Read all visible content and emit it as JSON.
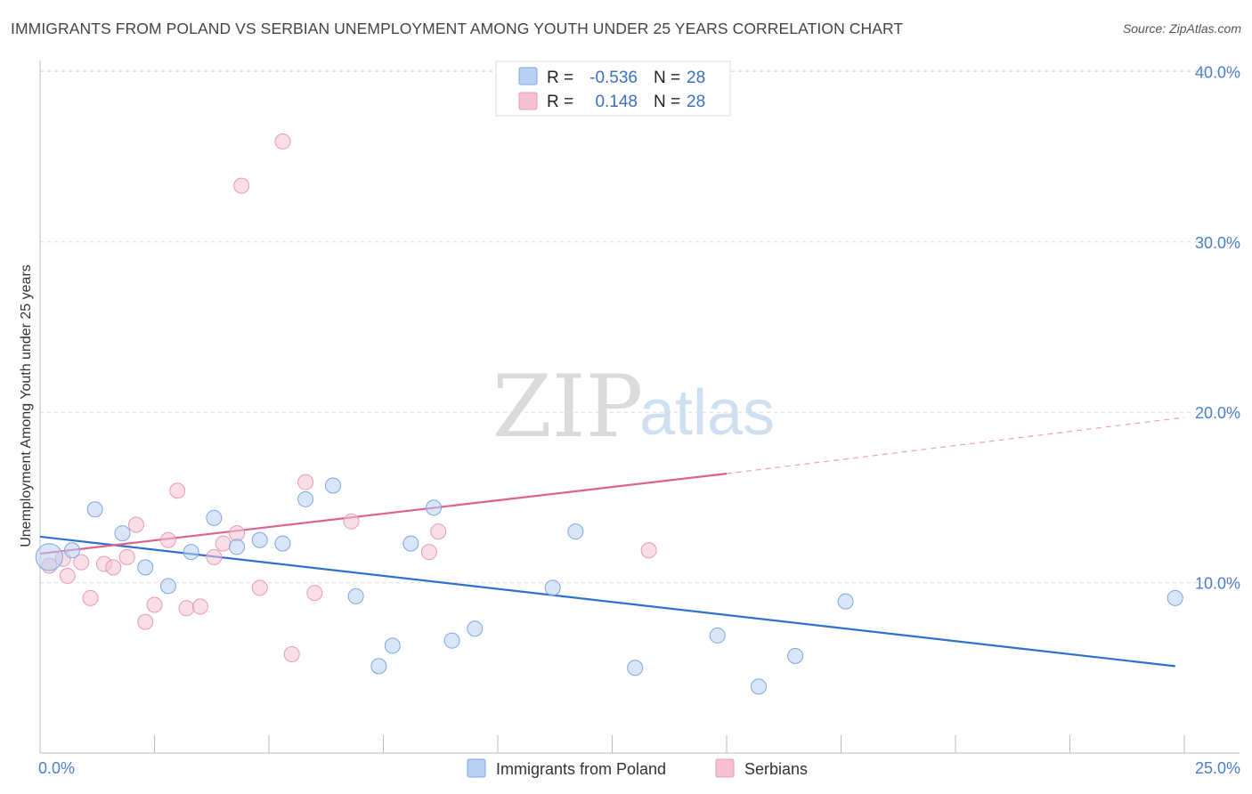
{
  "title": "IMMIGRANTS FROM POLAND VS SERBIAN UNEMPLOYMENT AMONG YOUTH UNDER 25 YEARS CORRELATION CHART",
  "source": "Source: ZipAtlas.com",
  "watermark": {
    "zip": "ZIP",
    "atlas": "atlas"
  },
  "legend": {
    "poland": {
      "r_label": "R =",
      "r_value": "-0.536",
      "n_label": "N =",
      "n_value": "28"
    },
    "serbians": {
      "r_label": "R =",
      "r_value": "0.148",
      "n_label": "N =",
      "n_value": "28"
    }
  },
  "chart_data": {
    "type": "scatter",
    "title": "IMMIGRANTS FROM POLAND VS SERBIAN UNEMPLOYMENT AMONG YOUTH UNDER 25 YEARS CORRELATION CHART",
    "xlabel": "",
    "ylabel": "Unemployment Among Youth under 25 years",
    "xlim": [
      0,
      25
    ],
    "ylim": [
      0,
      42
    ],
    "x_tick_labels": [
      "0.0%",
      "25.0%"
    ],
    "y_ticks": [
      10,
      20,
      30,
      40
    ],
    "y_tick_labels": [
      "10.0%",
      "20.0%",
      "30.0%",
      "40.0%"
    ],
    "colors": {
      "poland": "#2f6fd1",
      "poland_fill": "#b8d1f3",
      "serbians": "#e0608e",
      "serbians_fill": "#f6c2d3"
    },
    "series": [
      {
        "name": "Immigrants from Poland",
        "color": "#2f6fd1",
        "points": [
          [
            0.2,
            11.5
          ],
          [
            0.7,
            11.9
          ],
          [
            1.2,
            14.3
          ],
          [
            1.8,
            12.9
          ],
          [
            2.3,
            10.9
          ],
          [
            2.8,
            9.8
          ],
          [
            3.3,
            11.8
          ],
          [
            3.8,
            13.8
          ],
          [
            4.3,
            12.1
          ],
          [
            4.8,
            12.5
          ],
          [
            5.3,
            12.3
          ],
          [
            5.8,
            14.9
          ],
          [
            6.4,
            15.7
          ],
          [
            6.9,
            9.2
          ],
          [
            7.4,
            5.1
          ],
          [
            7.7,
            6.3
          ],
          [
            8.1,
            12.3
          ],
          [
            8.6,
            14.4
          ],
          [
            9.0,
            6.6
          ],
          [
            9.5,
            7.3
          ],
          [
            11.2,
            9.7
          ],
          [
            11.7,
            13.0
          ],
          [
            13.0,
            5.0
          ],
          [
            14.8,
            6.9
          ],
          [
            15.7,
            3.9
          ],
          [
            16.5,
            5.7
          ],
          [
            17.6,
            8.9
          ],
          [
            24.8,
            9.1
          ]
        ],
        "trend": {
          "x": [
            0,
            24.8
          ],
          "y": [
            12.7,
            5.1
          ]
        }
      },
      {
        "name": "Serbians",
        "color": "#e0608e",
        "points": [
          [
            0.2,
            11.0
          ],
          [
            0.5,
            11.4
          ],
          [
            0.6,
            10.4
          ],
          [
            0.9,
            11.2
          ],
          [
            1.1,
            9.1
          ],
          [
            1.4,
            11.1
          ],
          [
            1.6,
            10.9
          ],
          [
            1.9,
            11.5
          ],
          [
            2.1,
            13.4
          ],
          [
            2.3,
            7.7
          ],
          [
            2.5,
            8.7
          ],
          [
            2.8,
            12.5
          ],
          [
            3.0,
            15.4
          ],
          [
            3.2,
            8.5
          ],
          [
            3.5,
            8.6
          ],
          [
            3.8,
            11.5
          ],
          [
            4.0,
            12.3
          ],
          [
            4.3,
            12.9
          ],
          [
            4.4,
            33.3
          ],
          [
            4.8,
            9.7
          ],
          [
            5.3,
            35.9
          ],
          [
            5.5,
            5.8
          ],
          [
            5.8,
            15.9
          ],
          [
            6.0,
            9.4
          ],
          [
            6.8,
            13.6
          ],
          [
            8.5,
            11.8
          ],
          [
            8.7,
            13.0
          ],
          [
            13.3,
            11.9
          ]
        ],
        "trend": {
          "x": [
            0,
            15.0
          ],
          "y": [
            11.7,
            16.4
          ]
        },
        "trend_extension": {
          "x": [
            15.0,
            25.0
          ],
          "y": [
            16.4,
            19.7
          ]
        }
      }
    ],
    "legend": [
      "Immigrants from Poland",
      "Serbians"
    ]
  }
}
